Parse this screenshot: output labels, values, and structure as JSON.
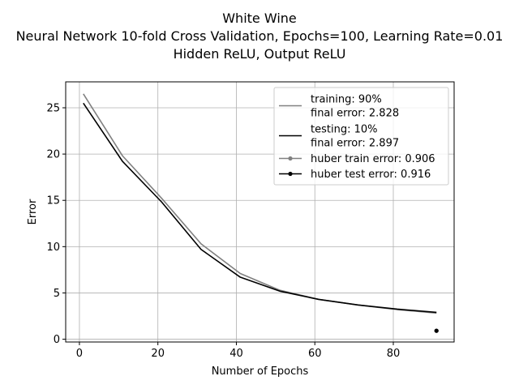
{
  "chart_data": {
    "type": "line",
    "title_lines": [
      "White Wine",
      "Neural Network 10-fold Cross Validation, Epochs=100, Learning Rate=0.01",
      "Hidden ReLU, Output ReLU"
    ],
    "xlabel": "Number of Epochs",
    "ylabel": "Error",
    "xlim": [
      -3.5,
      95.5
    ],
    "ylim": [
      -0.3,
      27.8
    ],
    "xticks": [
      0,
      20,
      40,
      60,
      80
    ],
    "yticks": [
      0,
      5,
      10,
      15,
      20,
      25
    ],
    "grid": true,
    "legend_position": "top-right",
    "series": [
      {
        "name": "training: 90%\nfinal error: 2.828",
        "color": "#808080",
        "marker": "none",
        "x": [
          1,
          11,
          21,
          31,
          41,
          51,
          61,
          71,
          81,
          91
        ],
        "y": [
          26.5,
          19.8,
          15.2,
          10.3,
          7.1,
          5.3,
          4.3,
          3.7,
          3.2,
          2.828
        ]
      },
      {
        "name": "testing: 10%\nfinal error: 2.897",
        "color": "#000000",
        "marker": "none",
        "x": [
          1,
          11,
          21,
          31,
          41,
          51,
          61,
          71,
          81,
          91
        ],
        "y": [
          25.5,
          19.2,
          14.8,
          9.7,
          6.7,
          5.2,
          4.3,
          3.7,
          3.25,
          2.897
        ]
      },
      {
        "name": "huber train error: 0.906",
        "color": "#808080",
        "marker": "circle",
        "x": [
          91
        ],
        "y": [
          0.906
        ]
      },
      {
        "name": "huber test error: 0.916",
        "color": "#000000",
        "marker": "circle",
        "x": [
          91
        ],
        "y": [
          0.916
        ]
      }
    ]
  }
}
